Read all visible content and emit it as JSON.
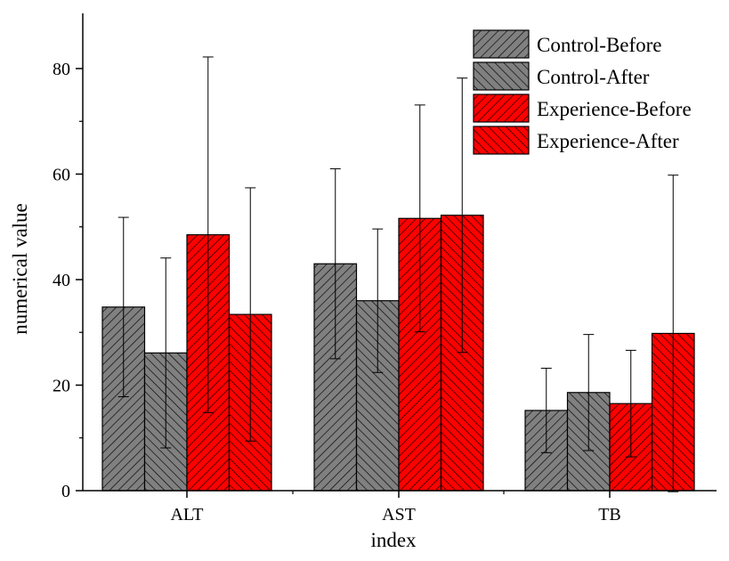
{
  "chart_data": {
    "type": "bar",
    "title": "",
    "xlabel": "index",
    "ylabel": "numerical value",
    "categories": [
      "ALT",
      "AST",
      "TB"
    ],
    "ylim": [
      0,
      90
    ],
    "yticks": [
      0,
      20,
      40,
      60,
      80
    ],
    "grid": false,
    "legend_position": "top-right",
    "series": [
      {
        "name": "Control-Before",
        "color": "#808080",
        "hatch": "forward-diagonal",
        "values": [
          34.8,
          43.0,
          15.2
        ],
        "errors": [
          17.0,
          18.0,
          8.0
        ]
      },
      {
        "name": "Control-After",
        "color": "#808080",
        "hatch": "back-diagonal",
        "values": [
          26.1,
          36.0,
          18.6
        ],
        "errors": [
          18.0,
          13.6,
          11.0
        ]
      },
      {
        "name": "Experience-Before",
        "color": "#ff0000",
        "hatch": "forward-diagonal",
        "values": [
          48.5,
          51.6,
          16.5
        ],
        "errors": [
          33.7,
          21.5,
          10.1
        ]
      },
      {
        "name": "Experience-After",
        "color": "#ff0000",
        "hatch": "back-diagonal",
        "values": [
          33.4,
          52.2,
          29.8
        ],
        "errors": [
          24.0,
          26.0,
          30.0
        ]
      }
    ]
  }
}
